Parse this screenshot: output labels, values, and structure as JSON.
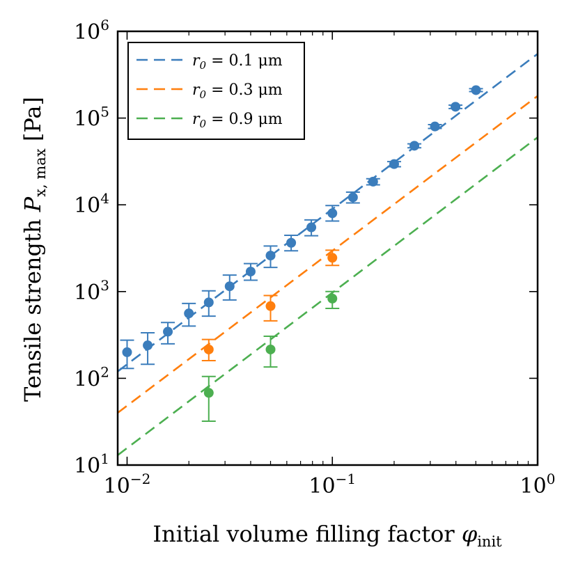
{
  "chart_data": {
    "type": "scatter",
    "xscale": "log",
    "yscale": "log",
    "xlim": [
      0.009,
      1.0
    ],
    "ylim": [
      10,
      1000000
    ],
    "xlabel": {
      "main": "Initial volume filling factor ",
      "symbol": "φ",
      "sub": "init"
    },
    "ylabel": {
      "main": "Tensile strength ",
      "symbol": "P",
      "sub": "x, max",
      "unit": " [Pa]"
    },
    "x_ticks": [
      {
        "value": 0.01,
        "base": "10",
        "exp": "−2"
      },
      {
        "value": 0.1,
        "base": "10",
        "exp": "−1"
      },
      {
        "value": 1.0,
        "base": "10",
        "exp": "0"
      }
    ],
    "y_ticks": [
      {
        "value": 10,
        "base": "10",
        "exp": "1"
      },
      {
        "value": 100,
        "base": "10",
        "exp": "2"
      },
      {
        "value": 1000,
        "base": "10",
        "exp": "3"
      },
      {
        "value": 10000,
        "base": "10",
        "exp": "4"
      },
      {
        "value": 100000,
        "base": "10",
        "exp": "5"
      },
      {
        "value": 1000000,
        "base": "10",
        "exp": "6"
      }
    ],
    "legend_position": "top-left",
    "series": [
      {
        "name": "r0 = 0.1 μm",
        "legend_label": {
          "sym": "r",
          "sub": "0",
          "rest": " = 0.1 μm"
        },
        "color": "#3b7dbc",
        "fit": {
          "x": [
            0.009,
            1.0
          ],
          "y": [
            120,
            550000
          ]
        },
        "points": [
          {
            "x": 0.01,
            "y": 200,
            "lo": 130,
            "hi": 275
          },
          {
            "x": 0.0126,
            "y": 240,
            "lo": 145,
            "hi": 335
          },
          {
            "x": 0.0158,
            "y": 345,
            "lo": 250,
            "hi": 440
          },
          {
            "x": 0.02,
            "y": 560,
            "lo": 400,
            "hi": 730
          },
          {
            "x": 0.025,
            "y": 750,
            "lo": 520,
            "hi": 1020
          },
          {
            "x": 0.0316,
            "y": 1150,
            "lo": 800,
            "hi": 1550
          },
          {
            "x": 0.04,
            "y": 1700,
            "lo": 1350,
            "hi": 2100
          },
          {
            "x": 0.05,
            "y": 2600,
            "lo": 1900,
            "hi": 3350
          },
          {
            "x": 0.063,
            "y": 3650,
            "lo": 2950,
            "hi": 4450
          },
          {
            "x": 0.079,
            "y": 5500,
            "lo": 4400,
            "hi": 6700
          },
          {
            "x": 0.1,
            "y": 8000,
            "lo": 6500,
            "hi": 9800
          },
          {
            "x": 0.126,
            "y": 12200,
            "lo": 10500,
            "hi": 14000
          },
          {
            "x": 0.158,
            "y": 18500,
            "lo": 17000,
            "hi": 20000
          },
          {
            "x": 0.2,
            "y": 29500,
            "lo": 27500,
            "hi": 31500
          },
          {
            "x": 0.251,
            "y": 48000,
            "lo": 45500,
            "hi": 50500
          },
          {
            "x": 0.316,
            "y": 80000,
            "lo": 76000,
            "hi": 84000
          },
          {
            "x": 0.398,
            "y": 135000,
            "lo": 129000,
            "hi": 141000
          },
          {
            "x": 0.501,
            "y": 210000,
            "lo": 202000,
            "hi": 218000
          }
        ]
      },
      {
        "name": "r0 = 0.3 μm",
        "legend_label": {
          "sym": "r",
          "sub": "0",
          "rest": " = 0.3 μm"
        },
        "color": "#ff7f0e",
        "fit": {
          "x": [
            0.009,
            1.0
          ],
          "y": [
            40,
            180000
          ]
        },
        "points": [
          {
            "x": 0.025,
            "y": 215,
            "lo": 160,
            "hi": 280
          },
          {
            "x": 0.05,
            "y": 680,
            "lo": 460,
            "hi": 900
          },
          {
            "x": 0.1,
            "y": 2450,
            "lo": 2000,
            "hi": 3000
          }
        ]
      },
      {
        "name": "r0 = 0.9 μm",
        "legend_label": {
          "sym": "r",
          "sub": "0",
          "rest": " = 0.9 μm"
        },
        "color": "#4caf50",
        "fit": {
          "x": [
            0.009,
            1.0
          ],
          "y": [
            13,
            60000
          ]
        },
        "points": [
          {
            "x": 0.025,
            "y": 68,
            "lo": 32,
            "hi": 105
          },
          {
            "x": 0.05,
            "y": 215,
            "lo": 135,
            "hi": 305
          },
          {
            "x": 0.1,
            "y": 830,
            "lo": 640,
            "hi": 1000
          }
        ]
      }
    ]
  }
}
